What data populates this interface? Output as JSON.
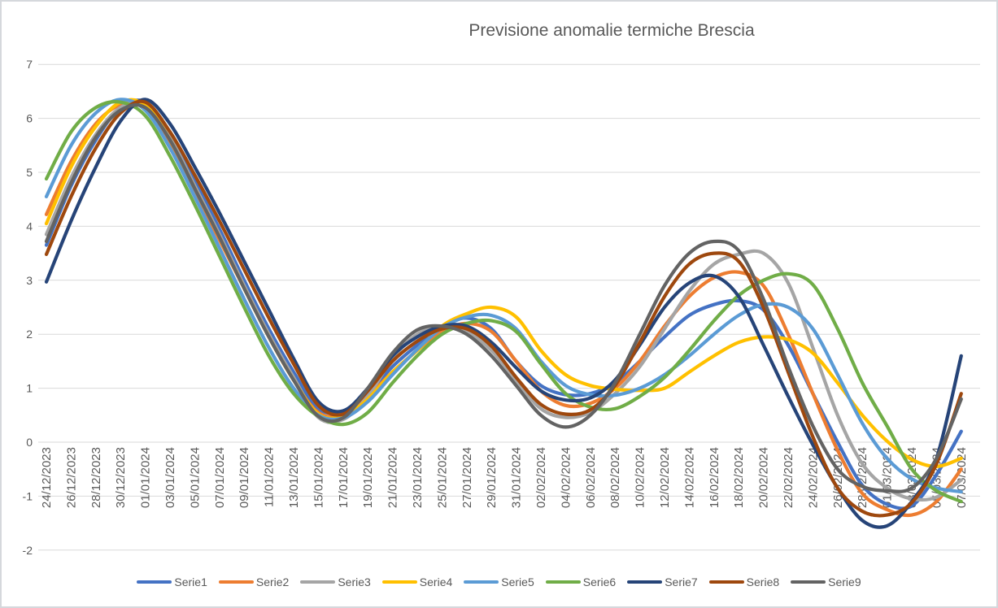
{
  "chart": {
    "title": "Previsione anomalie termiche Brescia"
  },
  "chart_data": {
    "type": "line",
    "title": "Previsione anomalie termiche Brescia",
    "xlabel": "",
    "ylabel": "",
    "ylim": [
      -2,
      7
    ],
    "yticks": [
      -2,
      -1,
      0,
      1,
      2,
      3,
      4,
      5,
      6,
      7
    ],
    "grid": true,
    "smooth_lines": true,
    "legend_position": "bottom",
    "text_color": "#595959",
    "gridline_color": "#d9d9d9",
    "categories": [
      "24/12/2023",
      "26/12/2023",
      "28/12/2023",
      "30/12/2023",
      "01/01/2024",
      "03/01/2024",
      "05/01/2024",
      "07/01/2024",
      "09/01/2024",
      "11/01/2024",
      "13/01/2024",
      "15/01/2024",
      "17/01/2024",
      "19/01/2024",
      "21/01/2024",
      "23/01/2024",
      "25/01/2024",
      "27/01/2024",
      "29/01/2024",
      "31/01/2024",
      "02/02/2024",
      "04/02/2024",
      "06/02/2024",
      "08/02/2024",
      "10/02/2024",
      "12/02/2024",
      "14/02/2024",
      "16/02/2024",
      "18/02/2024",
      "20/02/2024",
      "22/02/2024",
      "24/02/2024",
      "26/02/2024",
      "28/02/2024",
      "01/03/2024",
      "03/03/2024",
      "05/03/2024",
      "07/03/2024"
    ],
    "series": [
      {
        "name": "Serie1",
        "color": "#4472C4",
        "values": [
          3.65,
          4.75,
          5.6,
          6.2,
          6.3,
          5.7,
          4.85,
          3.95,
          3.0,
          2.1,
          1.3,
          0.62,
          0.58,
          0.9,
          1.4,
          1.8,
          2.15,
          2.3,
          2.1,
          1.5,
          1.05,
          0.88,
          0.9,
          1.1,
          1.5,
          1.95,
          2.35,
          2.55,
          2.62,
          2.45,
          1.8,
          0.9,
          0.0,
          -0.8,
          -1.15,
          -1.18,
          -0.6,
          0.2
        ]
      },
      {
        "name": "Serie2",
        "color": "#ED7D31",
        "values": [
          4.22,
          5.2,
          5.9,
          6.25,
          6.2,
          5.55,
          4.65,
          3.75,
          2.85,
          1.95,
          1.15,
          0.55,
          0.5,
          0.85,
          1.3,
          1.7,
          2.05,
          2.2,
          2.05,
          1.5,
          0.95,
          0.68,
          0.72,
          1.0,
          1.5,
          2.15,
          2.7,
          3.05,
          3.15,
          2.9,
          2.0,
          0.9,
          -0.15,
          -0.95,
          -1.25,
          -1.35,
          -1.1,
          -0.5
        ]
      },
      {
        "name": "Serie3",
        "color": "#A5A5A5",
        "values": [
          3.85,
          4.9,
          5.7,
          6.2,
          6.25,
          5.65,
          4.75,
          3.85,
          2.9,
          2.0,
          1.2,
          0.46,
          0.42,
          0.85,
          1.55,
          2.0,
          2.15,
          2.05,
          1.7,
          1.15,
          0.62,
          0.46,
          0.55,
          0.9,
          1.4,
          2.1,
          2.8,
          3.3,
          3.48,
          3.5,
          2.95,
          1.75,
          0.5,
          -0.4,
          -0.85,
          -1.05,
          -1.02,
          -0.7
        ]
      },
      {
        "name": "Serie4",
        "color": "#FFC000",
        "values": [
          4.05,
          5.1,
          5.85,
          6.3,
          6.25,
          5.6,
          4.7,
          3.8,
          2.85,
          1.95,
          1.15,
          0.52,
          0.48,
          0.8,
          1.3,
          1.7,
          2.15,
          2.38,
          2.5,
          2.32,
          1.7,
          1.25,
          1.05,
          0.98,
          0.96,
          1.0,
          1.3,
          1.6,
          1.85,
          1.95,
          1.9,
          1.65,
          1.1,
          0.5,
          0.02,
          -0.32,
          -0.45,
          -0.3
        ]
      },
      {
        "name": "Serie5",
        "color": "#5B9BD5",
        "values": [
          4.55,
          5.5,
          6.1,
          6.35,
          6.15,
          5.45,
          4.55,
          3.6,
          2.65,
          1.75,
          1.0,
          0.5,
          0.45,
          0.75,
          1.25,
          1.72,
          2.12,
          2.32,
          2.35,
          2.1,
          1.5,
          1.05,
          0.88,
          0.87,
          1.0,
          1.25,
          1.6,
          2.0,
          2.35,
          2.55,
          2.5,
          2.1,
          1.25,
          0.35,
          -0.3,
          -0.68,
          -0.85,
          -0.92
        ]
      },
      {
        "name": "Serie6",
        "color": "#70AD47",
        "values": [
          4.88,
          5.75,
          6.2,
          6.3,
          6.05,
          5.3,
          4.4,
          3.45,
          2.5,
          1.6,
          0.9,
          0.48,
          0.33,
          0.55,
          1.1,
          1.6,
          2.0,
          2.2,
          2.25,
          2.05,
          1.45,
          0.9,
          0.65,
          0.62,
          0.85,
          1.2,
          1.7,
          2.25,
          2.72,
          3.0,
          3.12,
          2.92,
          2.1,
          1.1,
          0.3,
          -0.5,
          -0.9,
          -1.1
        ]
      },
      {
        "name": "Serie7",
        "color": "#264478",
        "values": [
          2.97,
          4.1,
          5.1,
          5.95,
          6.35,
          5.9,
          5.1,
          4.25,
          3.35,
          2.45,
          1.55,
          0.75,
          0.58,
          1.0,
          1.6,
          1.95,
          2.15,
          2.15,
          1.85,
          1.38,
          0.95,
          0.78,
          0.82,
          1.15,
          1.8,
          2.5,
          2.95,
          3.08,
          2.7,
          1.8,
          0.85,
          -0.05,
          -0.85,
          -1.45,
          -1.55,
          -1.1,
          -0.3,
          1.6
        ]
      },
      {
        "name": "Serie8",
        "color": "#9E480E",
        "values": [
          3.48,
          4.55,
          5.45,
          6.1,
          6.3,
          5.75,
          4.95,
          4.1,
          3.2,
          2.3,
          1.45,
          0.68,
          0.52,
          0.95,
          1.5,
          1.87,
          2.1,
          2.1,
          1.78,
          1.2,
          0.7,
          0.52,
          0.6,
          1.05,
          1.85,
          2.7,
          3.3,
          3.5,
          3.35,
          2.5,
          1.3,
          0.1,
          -0.85,
          -1.28,
          -1.35,
          -1.12,
          -0.4,
          0.9
        ]
      },
      {
        "name": "Serie9",
        "color": "#636363",
        "values": [
          3.72,
          4.8,
          5.65,
          6.15,
          6.2,
          5.6,
          4.7,
          3.8,
          2.85,
          1.95,
          1.15,
          0.48,
          0.45,
          1.0,
          1.65,
          2.08,
          2.15,
          2.0,
          1.6,
          1.05,
          0.5,
          0.28,
          0.5,
          1.1,
          2.0,
          2.9,
          3.5,
          3.72,
          3.55,
          2.65,
          1.4,
          0.3,
          -0.5,
          -0.82,
          -0.9,
          -0.85,
          -0.3,
          0.8
        ]
      }
    ]
  }
}
